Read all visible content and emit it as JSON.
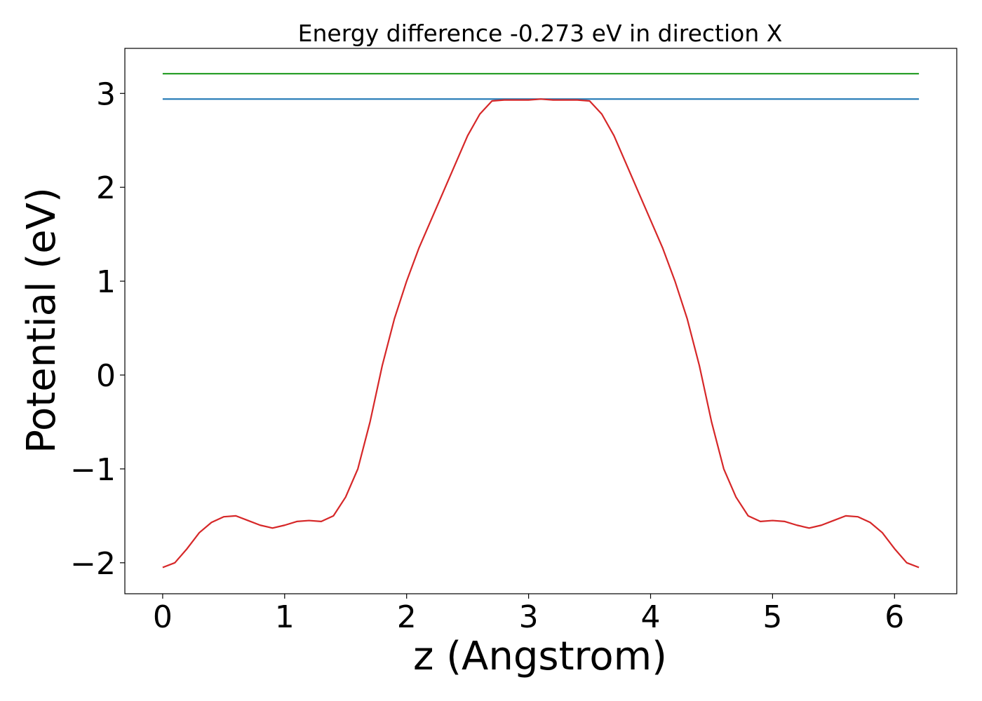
{
  "chart_data": {
    "type": "line",
    "title": "Energy difference -0.273 eV in direction X",
    "xlabel": "z (Angstrom)",
    "ylabel": "Potential (eV)",
    "xlim": [
      -0.31,
      6.51
    ],
    "ylim": [
      -2.33,
      3.48
    ],
    "xticks": [
      0,
      1,
      2,
      3,
      4,
      5,
      6
    ],
    "yticks": [
      -2,
      -1,
      0,
      1,
      2,
      3
    ],
    "xtick_labels": [
      "0",
      "1",
      "2",
      "3",
      "4",
      "5",
      "6"
    ],
    "ytick_labels": [
      "−2",
      "−1",
      "0",
      "1",
      "2",
      "3"
    ],
    "grid": false,
    "series": [
      {
        "color": "#2ca02c",
        "x": [
          0,
          6.2
        ],
        "y": [
          3.21,
          3.21
        ]
      },
      {
        "color": "#1f77b4",
        "x": [
          0,
          6.2
        ],
        "y": [
          2.94,
          2.94
        ]
      },
      {
        "color": "#d62728",
        "x": [
          0,
          0.1,
          0.2,
          0.3,
          0.4,
          0.5,
          0.6,
          0.7,
          0.8,
          0.9,
          1.0,
          1.1,
          1.2,
          1.3,
          1.4,
          1.5,
          1.6,
          1.7,
          1.8,
          1.9,
          2.0,
          2.1,
          2.2,
          2.3,
          2.4,
          2.5,
          2.6,
          2.7,
          2.8,
          2.9,
          3.0,
          3.1,
          3.2,
          3.3,
          3.4,
          3.5,
          3.6,
          3.7,
          3.8,
          3.9,
          4.0,
          4.1,
          4.2,
          4.3,
          4.4,
          4.5,
          4.6,
          4.7,
          4.8,
          4.9,
          5.0,
          5.1,
          5.2,
          5.3,
          5.4,
          5.5,
          5.6,
          5.7,
          5.8,
          5.9,
          6.0,
          6.1,
          6.2
        ],
        "y": [
          -2.05,
          -2.0,
          -1.85,
          -1.68,
          -1.57,
          -1.51,
          -1.5,
          -1.55,
          -1.6,
          -1.63,
          -1.6,
          -1.56,
          -1.55,
          -1.56,
          -1.5,
          -1.3,
          -1.0,
          -0.5,
          0.1,
          0.6,
          1.0,
          1.35,
          1.65,
          1.95,
          2.25,
          2.55,
          2.78,
          2.92,
          2.93,
          2.93,
          2.93,
          2.94,
          2.93,
          2.93,
          2.93,
          2.92,
          2.78,
          2.55,
          2.25,
          1.95,
          1.65,
          1.35,
          1.0,
          0.6,
          0.1,
          -0.5,
          -1.0,
          -1.3,
          -1.5,
          -1.56,
          -1.55,
          -1.56,
          -1.6,
          -1.63,
          -1.6,
          -1.55,
          -1.5,
          -1.51,
          -1.57,
          -1.68,
          -1.85,
          -2.0,
          -2.05
        ]
      }
    ]
  }
}
